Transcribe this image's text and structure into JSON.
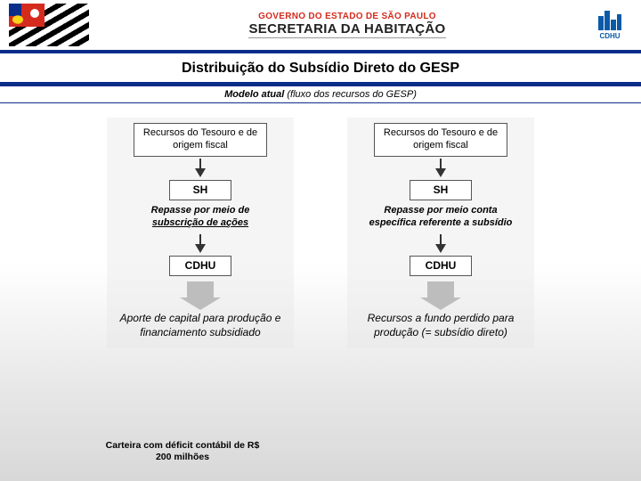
{
  "header": {
    "gov_line": "GOVERNO DO ESTADO DE SÃO PAULO",
    "sec_line": "SECRETARIA DA HABITAÇÃO",
    "cdhu_label": "CDHU"
  },
  "title": "Distribuição do Subsídio Direto do GESP",
  "subtitle_bold": "Modelo atual",
  "subtitle_italic": "(fluxo dos recursos do GESP)",
  "flow": {
    "left": {
      "source": "Recursos do Tesouro e de origem fiscal",
      "sh": "SH",
      "repasse_a": "Repasse por meio de",
      "repasse_b": "subscrição de ações",
      "cdhu": "CDHU",
      "outcome": "Aporte de capital para produção e financiamento subsidiado"
    },
    "right": {
      "source": "Recursos do Tesouro e de origem fiscal",
      "sh": "SH",
      "repasse_a": "Repasse  por meio conta",
      "repasse_b": "específica referente a subsídio",
      "cdhu": "CDHU",
      "outcome": "Recursos a fundo perdido para produção\n(= subsídio direto)"
    }
  },
  "footnote": "Carteira com déficit contábil de R$ 200 milhões",
  "colors": {
    "brand_blue": "#0a2d8a",
    "brand_red": "#d52b1e",
    "logo_blue": "#0a5aa8",
    "arrow_gray": "#bdbdbd",
    "text": "#000000",
    "box_border": "#555555",
    "background_gradient_end": "#d8d8d8"
  },
  "structure": {
    "type": "flowchart",
    "columns": 2,
    "steps_per_column": [
      "source-box",
      "arrow",
      "SH-box",
      "repasse-text",
      "arrow",
      "CDHU-box",
      "block-arrow",
      "outcome-text"
    ],
    "footnote_attached_to": "left"
  }
}
